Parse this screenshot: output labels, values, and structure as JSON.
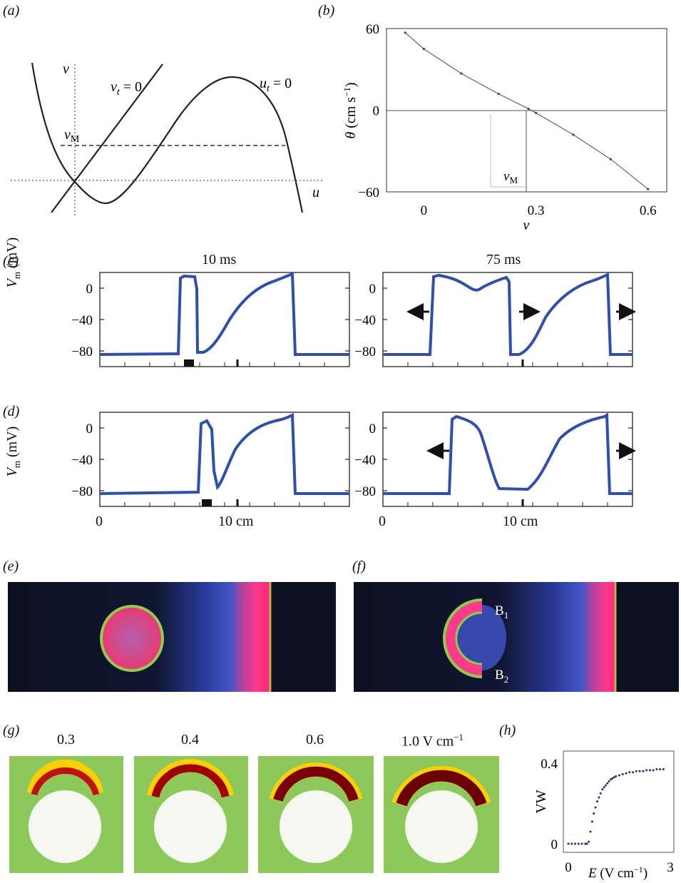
{
  "panel_labels": {
    "a": "(a)",
    "b": "(b)",
    "c": "(c)",
    "d": "(d)",
    "e": "(e)",
    "f": "(f)",
    "g": "(g)",
    "h": "(h)"
  },
  "panel_a": {
    "y_label": "v",
    "x_label": "u",
    "vm_label": "v",
    "vm_sub": "M",
    "vnull_label": "v",
    "vnull_sub": "t",
    "vnull_eq": " = 0",
    "unull_label": "u",
    "unull_sub": "t",
    "unull_eq": " = 0"
  },
  "panel_c": {
    "title_left": "10 ms",
    "title_right": "75 ms"
  },
  "panel_f": {
    "b1": "B",
    "b1_sub": "1",
    "b2": "B",
    "b2_sub": "2"
  },
  "panel_g": {
    "titles": [
      "0.3",
      "0.4",
      "0.6",
      "1.0 V cm"
    ],
    "unit_sup": "−1"
  },
  "vm_axis": {
    "label": "V",
    "label_sub": "m",
    "label_unit": " (mV)",
    "ticks": [
      "0",
      "−40",
      "−80"
    ]
  },
  "x_axis_cm": {
    "ticks": [
      "0",
      "10 cm"
    ]
  },
  "chart_data": [
    {
      "type": "line",
      "panel": "b",
      "ylabel": "θ (cm s⁻¹)",
      "xlabel": "v",
      "xlim": [
        -0.1,
        0.65
      ],
      "ylim": [
        -60,
        60
      ],
      "x_ticks": [
        "0",
        "0.3",
        "0.6"
      ],
      "y_ticks": [
        "60",
        "0",
        "−60"
      ],
      "annotation": "v_M",
      "x": [
        -0.05,
        0.0,
        0.1,
        0.2,
        0.28,
        0.3,
        0.4,
        0.5,
        0.6
      ],
      "y": [
        57,
        45,
        27,
        12,
        1,
        -2,
        -18,
        -36,
        -58
      ]
    },
    {
      "type": "scatter",
      "panel": "h",
      "ylabel": "VW",
      "xlabel": "E (V cm⁻¹)",
      "xlim": [
        0,
        3
      ],
      "ylim": [
        0,
        0.4
      ],
      "x_ticks": [
        "0",
        "3"
      ],
      "y_ticks": [
        "0.4",
        "0"
      ],
      "x": [
        0.0,
        0.1,
        0.2,
        0.3,
        0.4,
        0.5,
        0.55,
        0.6,
        0.65,
        0.7,
        0.75,
        0.8,
        0.85,
        0.9,
        0.95,
        1.0,
        1.05,
        1.1,
        1.15,
        1.2,
        1.25,
        1.3,
        1.35,
        1.4,
        1.5,
        1.6,
        1.7,
        1.8,
        1.9,
        2.0,
        2.1,
        2.2,
        2.3,
        2.4,
        2.5,
        2.6,
        2.7,
        2.8
      ],
      "y": [
        0,
        0,
        0,
        0,
        0,
        0,
        0,
        0.01,
        0.06,
        0.11,
        0.15,
        0.18,
        0.21,
        0.23,
        0.25,
        0.27,
        0.28,
        0.29,
        0.3,
        0.31,
        0.32,
        0.325,
        0.33,
        0.335,
        0.34,
        0.345,
        0.35,
        0.355,
        0.355,
        0.36,
        0.36,
        0.36,
        0.365,
        0.365,
        0.365,
        0.37,
        0.37,
        0.37
      ]
    }
  ]
}
